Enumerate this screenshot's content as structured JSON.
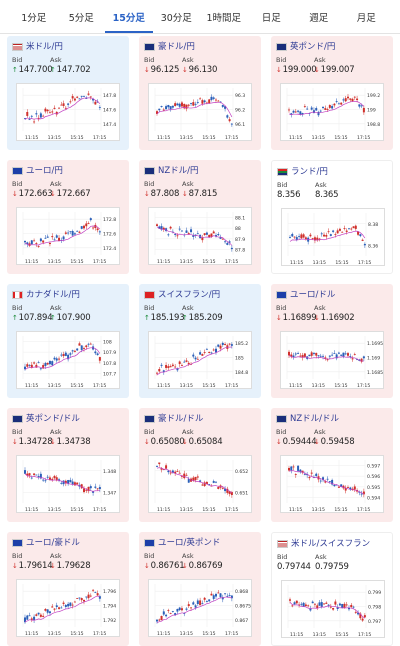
{
  "tabs": [
    "1分足",
    "5分足",
    "15分足",
    "30分足",
    "1時間足",
    "日足",
    "週足",
    "月足"
  ],
  "active_tab": 2,
  "labels": {
    "bid": "Bid",
    "ask": "Ask"
  },
  "colors": {
    "up_card": "#e6f1fb",
    "down_card": "#fbeaea",
    "candle_up": "#d0302b",
    "candle_down": "#2b5fb8",
    "ma": "#c23fc2"
  },
  "cards": [
    {
      "pair": "米ドル/円",
      "dir": "up",
      "bid": "147.700",
      "ask": "147.702",
      "flag": "us",
      "yticks": [
        "147.8",
        "147.6",
        "147.4"
      ],
      "xticks": [
        "11:15",
        "13:15",
        "15:15",
        "17:15"
      ],
      "trend": [
        0.35,
        0.3,
        0.4,
        0.45,
        0.55,
        0.7,
        0.85,
        0.8,
        0.6
      ]
    },
    {
      "pair": "豪ドル/円",
      "dir": "down",
      "bid": "96.125",
      "ask": "96.130",
      "flag": "au",
      "yticks": [
        "96.3",
        "96.2",
        "96.1"
      ],
      "xticks": [
        "11:15",
        "13:15",
        "15:15",
        "17:15"
      ],
      "trend": [
        0.5,
        0.55,
        0.6,
        0.55,
        0.65,
        0.7,
        0.75,
        0.6,
        0.2
      ]
    },
    {
      "pair": "英ポンド/円",
      "dir": "down",
      "bid": "199.000",
      "ask": "199.007",
      "flag": "uk",
      "yticks": [
        "199.2",
        "199",
        "198.8"
      ],
      "xticks": [
        "11:15",
        "13:15",
        "15:15",
        "17:15"
      ],
      "trend": [
        0.4,
        0.45,
        0.5,
        0.45,
        0.55,
        0.6,
        0.7,
        0.75,
        0.45
      ]
    },
    {
      "pair": "ユーロ/円",
      "dir": "down",
      "bid": "172.663",
      "ask": "172.667",
      "flag": "eu",
      "yticks": [
        "172.8",
        "172.6",
        "172.4"
      ],
      "xticks": [
        "11:15",
        "13:15",
        "15:15",
        "17:15"
      ],
      "trend": [
        0.3,
        0.3,
        0.35,
        0.35,
        0.4,
        0.5,
        0.6,
        0.8,
        0.55
      ]
    },
    {
      "pair": "NZドル/円",
      "dir": "down",
      "bid": "87.808",
      "ask": "87.815",
      "flag": "nz",
      "yticks": [
        "88.1",
        "88",
        "87.9",
        "87.8"
      ],
      "xticks": [
        "11:15",
        "13:15",
        "15:15",
        "17:15"
      ],
      "trend": [
        0.7,
        0.6,
        0.5,
        0.55,
        0.5,
        0.45,
        0.5,
        0.4,
        0.15
      ]
    },
    {
      "pair": "ランド/円",
      "dir": "flat",
      "bid": "8.356",
      "ask": "8.365",
      "flag": "za",
      "yticks": [
        "8.38",
        "8.36"
      ],
      "xticks": [
        "11:15",
        "13:15",
        "15:15",
        "17:15"
      ],
      "trend": [
        0.4,
        0.45,
        0.4,
        0.45,
        0.5,
        0.55,
        0.6,
        0.65,
        0.25
      ]
    },
    {
      "pair": "カナダドル/円",
      "dir": "up",
      "bid": "107.894",
      "ask": "107.900",
      "flag": "ca",
      "yticks": [
        "108",
        "107.9",
        "107.8",
        "107.7"
      ],
      "xticks": [
        "11:15",
        "13:15",
        "15:15",
        "17:15"
      ],
      "trend": [
        0.3,
        0.35,
        0.3,
        0.4,
        0.5,
        0.6,
        0.75,
        0.8,
        0.5
      ]
    },
    {
      "pair": "スイスフラン/円",
      "dir": "up",
      "bid": "185.193",
      "ask": "185.209",
      "flag": "ch",
      "yticks": [
        "185.2",
        "185",
        "184.8"
      ],
      "xticks": [
        "11:15",
        "13:15",
        "15:15",
        "17:15"
      ],
      "trend": [
        0.2,
        0.25,
        0.3,
        0.4,
        0.5,
        0.6,
        0.7,
        0.8,
        0.75
      ]
    },
    {
      "pair": "ユーロ/ドル",
      "dir": "down",
      "bid": "1.16899",
      "ask": "1.16902",
      "flag": "eu",
      "yticks": [
        "1.1695",
        "1.169",
        "1.1685"
      ],
      "xticks": [
        "11:15",
        "13:15",
        "15:15",
        "17:15"
      ],
      "trend": [
        0.55,
        0.6,
        0.5,
        0.55,
        0.5,
        0.6,
        0.55,
        0.5,
        0.45
      ]
    },
    {
      "pair": "英ポンド/ドル",
      "dir": "down",
      "bid": "1.34728",
      "ask": "1.34738",
      "flag": "uk",
      "yticks": [
        "1.348",
        "1.347"
      ],
      "xticks": [
        "11:15",
        "13:15",
        "15:15",
        "17:15"
      ],
      "trend": [
        0.7,
        0.65,
        0.6,
        0.55,
        0.5,
        0.45,
        0.35,
        0.3,
        0.4
      ]
    },
    {
      "pair": "豪ドル/ドル",
      "dir": "down",
      "bid": "0.65080",
      "ask": "0.65084",
      "flag": "au",
      "yticks": [
        "0.652",
        "0.651"
      ],
      "xticks": [
        "11:15",
        "13:15",
        "15:15",
        "17:15"
      ],
      "trend": [
        0.85,
        0.8,
        0.7,
        0.6,
        0.55,
        0.5,
        0.45,
        0.35,
        0.2
      ]
    },
    {
      "pair": "NZドル/ドル",
      "dir": "down",
      "bid": "0.59444",
      "ask": "0.59458",
      "flag": "nz",
      "yticks": [
        "0.597",
        "0.596",
        "0.595",
        "0.594"
      ],
      "xticks": [
        "11:15",
        "13:15",
        "15:15",
        "17:15"
      ],
      "trend": [
        0.8,
        0.75,
        0.65,
        0.6,
        0.5,
        0.45,
        0.4,
        0.3,
        0.2
      ]
    },
    {
      "pair": "ユーロ/豪ドル",
      "dir": "down",
      "bid": "1.79614",
      "ask": "1.79628",
      "flag": "eu",
      "yticks": [
        "1.796",
        "1.794",
        "1.792"
      ],
      "xticks": [
        "11:15",
        "13:15",
        "15:15",
        "17:15"
      ],
      "trend": [
        0.2,
        0.25,
        0.3,
        0.4,
        0.5,
        0.55,
        0.65,
        0.8,
        0.7
      ]
    },
    {
      "pair": "ユーロ/英ポンド",
      "dir": "down",
      "bid": "0.86761",
      "ask": "0.86769",
      "flag": "eu",
      "yticks": [
        "0.868",
        "0.8675",
        "0.867"
      ],
      "xticks": [
        "11:15",
        "13:15",
        "15:15",
        "17:15"
      ],
      "trend": [
        0.2,
        0.3,
        0.35,
        0.4,
        0.5,
        0.6,
        0.7,
        0.75,
        0.7
      ]
    },
    {
      "pair": "米ドル/スイスフラン",
      "dir": "flat",
      "bid": "0.79744",
      "ask": "0.79759",
      "flag": "us",
      "yticks": [
        "0.799",
        "0.798",
        "0.797"
      ],
      "xticks": [
        "11:15",
        "13:15",
        "15:15",
        "17:15"
      ],
      "trend": [
        0.6,
        0.55,
        0.5,
        0.55,
        0.6,
        0.5,
        0.55,
        0.4,
        0.2
      ]
    }
  ]
}
